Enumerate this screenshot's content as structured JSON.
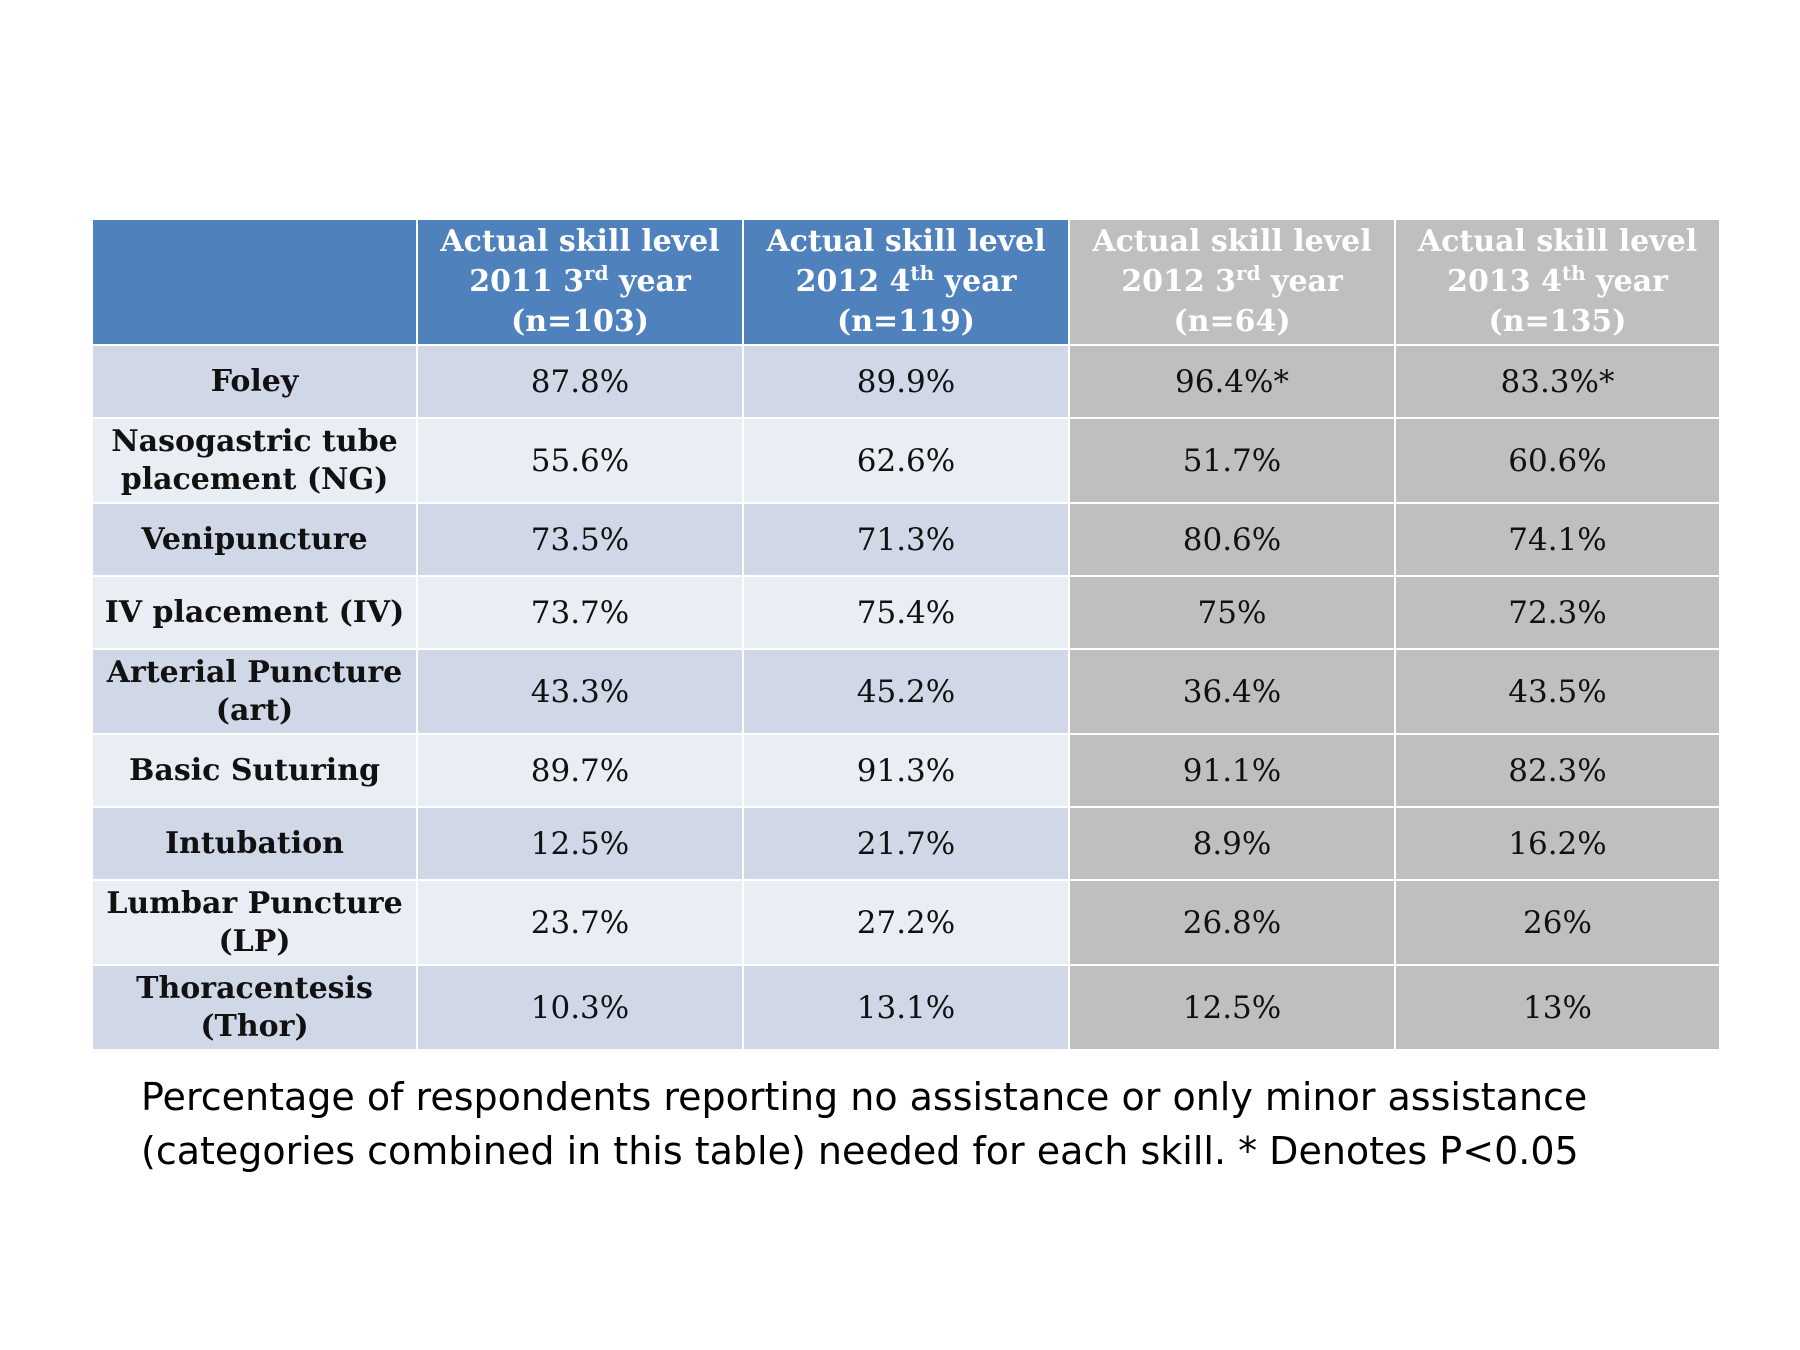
{
  "chart_data": {
    "type": "table",
    "columns": [
      {
        "label": "",
        "line1": "",
        "year": "",
        "suffix": "",
        "tail": "",
        "n": ""
      },
      {
        "label": "Actual skill level 2011 3rd year (n=103)",
        "line1": "Actual skill level",
        "year": "2011 3",
        "suffix": "rd",
        "tail": " year",
        "n": "(n=103)"
      },
      {
        "label": "Actual skill level 2012 4th year (n=119)",
        "line1": "Actual skill level",
        "year": "2012 4",
        "suffix": "th",
        "tail": " year",
        "n": "(n=119)"
      },
      {
        "label": "Actual skill level 2012 3rd year (n=64)",
        "line1": "Actual skill level",
        "year": "2012 3",
        "suffix": "rd",
        "tail": " year",
        "n": "(n=64)"
      },
      {
        "label": "Actual skill level 2013 4th year (n=135)",
        "line1": "Actual skill level",
        "year": "2013 4",
        "suffix": "th",
        "tail": " year",
        "n": "(n=135)"
      }
    ],
    "rows": [
      {
        "skill": "Foley",
        "values": [
          "87.8%",
          "89.9%",
          "96.4%*",
          "83.3%*"
        ]
      },
      {
        "skill": "Nasogastric tube placement (NG)",
        "values": [
          "55.6%",
          "62.6%",
          "51.7%",
          "60.6%"
        ]
      },
      {
        "skill": "Venipuncture",
        "values": [
          "73.5%",
          "71.3%",
          "80.6%",
          "74.1%"
        ]
      },
      {
        "skill": "IV placement (IV)",
        "values": [
          "73.7%",
          "75.4%",
          "75%",
          "72.3%"
        ]
      },
      {
        "skill": "Arterial Puncture (art)",
        "values": [
          "43.3%",
          "45.2%",
          "36.4%",
          "43.5%"
        ]
      },
      {
        "skill": "Basic Suturing",
        "values": [
          "89.7%",
          "91.3%",
          "91.1%",
          "82.3%"
        ]
      },
      {
        "skill": "Intubation",
        "values": [
          "12.5%",
          "21.7%",
          "8.9%",
          "16.2%"
        ]
      },
      {
        "skill": "Lumbar Puncture (LP)",
        "values": [
          "23.7%",
          "27.2%",
          "26.8%",
          "26%"
        ]
      },
      {
        "skill": "Thoracentesis (Thor)",
        "values": [
          "10.3%",
          "13.1%",
          "12.5%",
          "13%"
        ]
      }
    ],
    "caption_line1": "Percentage of respondents reporting no assistance or only minor assistance",
    "caption_line2": "(categories combined in this table) needed for each skill.  * Denotes P<0.05",
    "colors": {
      "header_blue": "#4f81bd",
      "header_gray": "#bfbfbf",
      "row_blue_dark": "#d0d8e8",
      "row_blue_light": "#e9edf4",
      "row_gray": "#bfbfbf",
      "text_dark": "#111111",
      "caption_text": "#000000"
    }
  }
}
